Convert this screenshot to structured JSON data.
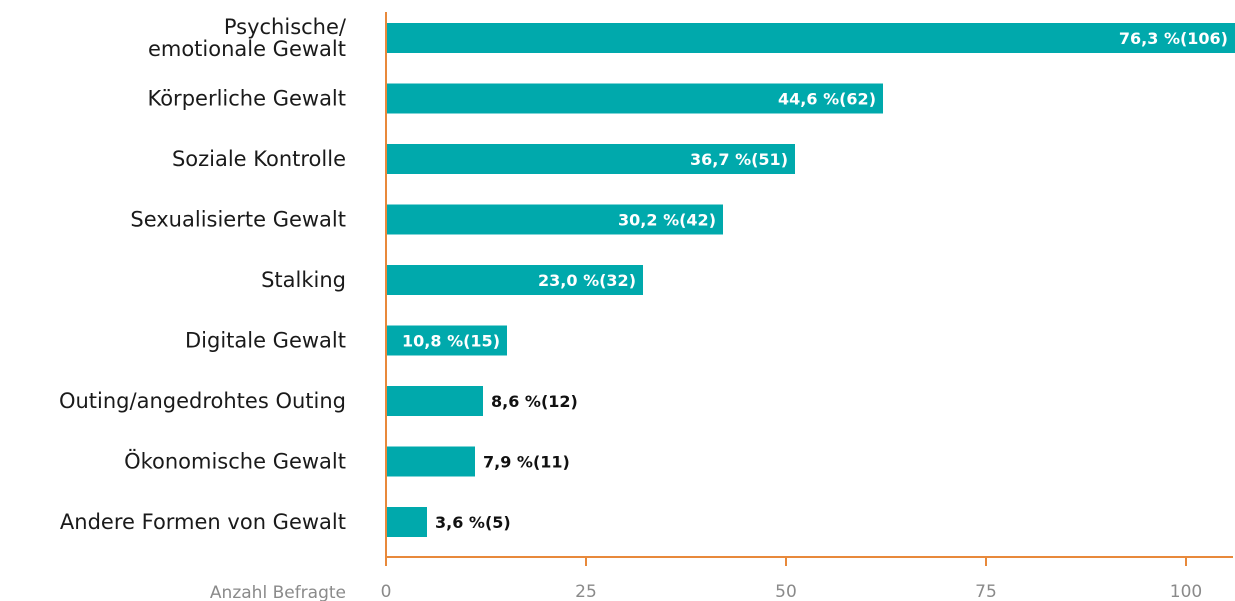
{
  "chart_data": {
    "type": "bar",
    "orientation": "horizontal",
    "categories": [
      "Psychische/\nemotionale Gewalt",
      "Körperliche Gewalt",
      "Soziale Kontrolle",
      "Sexualisierte Gewalt",
      "Stalking",
      "Digitale Gewalt",
      "Outing/angedrohtes Outing",
      "Ökonomische Gewalt",
      "Andere Formen von Gewalt"
    ],
    "values": [
      106,
      62,
      51,
      42,
      32,
      15,
      12,
      11,
      5
    ],
    "percentages": [
      "76,3 %",
      "44,6 %",
      "36,7 %",
      "30,2 %",
      "23,0 %",
      "10,8 %",
      "8,6 %",
      "7,9 %",
      "3,6 %"
    ],
    "data_labels": [
      "76,3 %(106)",
      "44,6 %(62)",
      "36,7 %(51)",
      "30,2 %(42)",
      "23,0 %(32)",
      "10,8 %(15)",
      "8,6 %(12)",
      "7,9 %(11)",
      "3,6 %(5)"
    ],
    "xlabel": "Anzahl Befragte",
    "ylabel": "",
    "title": "",
    "xlim": [
      0,
      106
    ],
    "xticks": [
      0,
      25,
      50,
      75,
      100
    ],
    "tick_labels": [
      "0",
      "25",
      "50",
      "75",
      "100"
    ],
    "grid": false,
    "legend": "none",
    "colors": {
      "bar": "#00a9ac",
      "axis": "#e8893b",
      "label_inside": "#ffffff",
      "label_outside": "#111111",
      "category_text": "#1a1a1a",
      "tick_text": "#8a8a8a"
    }
  }
}
